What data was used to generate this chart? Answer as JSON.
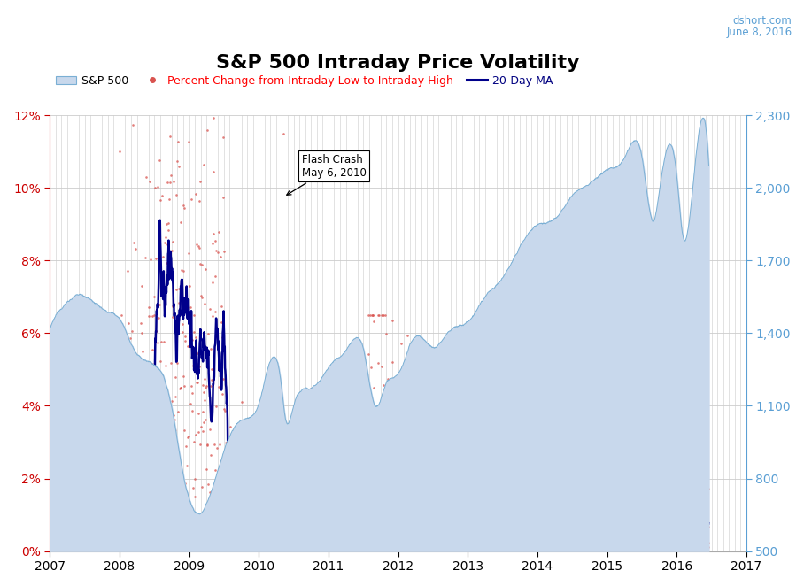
{
  "title": "S&P 500 Intraday Price Volatility",
  "subtitle_site": "dshort.com",
  "subtitle_date": "June 8, 2016",
  "left_yticks": [
    0,
    2,
    4,
    6,
    8,
    10,
    12
  ],
  "left_ytick_labels": [
    "0%",
    "2%",
    "4%",
    "6%",
    "8%",
    "10%",
    "12%"
  ],
  "right_yticks": [
    500,
    800,
    1100,
    1400,
    1700,
    2000,
    2300
  ],
  "right_ytick_labels": [
    "500",
    "800",
    "1,100",
    "1,400",
    "1,700",
    "2,000",
    "2,300"
  ],
  "spx_fill_color": "#c8d8ec",
  "spx_line_color": "#7aafd4",
  "scatter_color": "#d9534f",
  "ma_color": "#00008b",
  "annotation_text": "Flash Crash\nMay 6, 2010",
  "background_color": "#ffffff",
  "plot_bg_color": "#ffffff",
  "grid_color": "#cccccc",
  "title_fontsize": 16,
  "tick_label_fontsize": 10,
  "legend_fontsize": 9,
  "left_tick_color": "#cc0000",
  "right_tick_color": "#5a9fd4"
}
